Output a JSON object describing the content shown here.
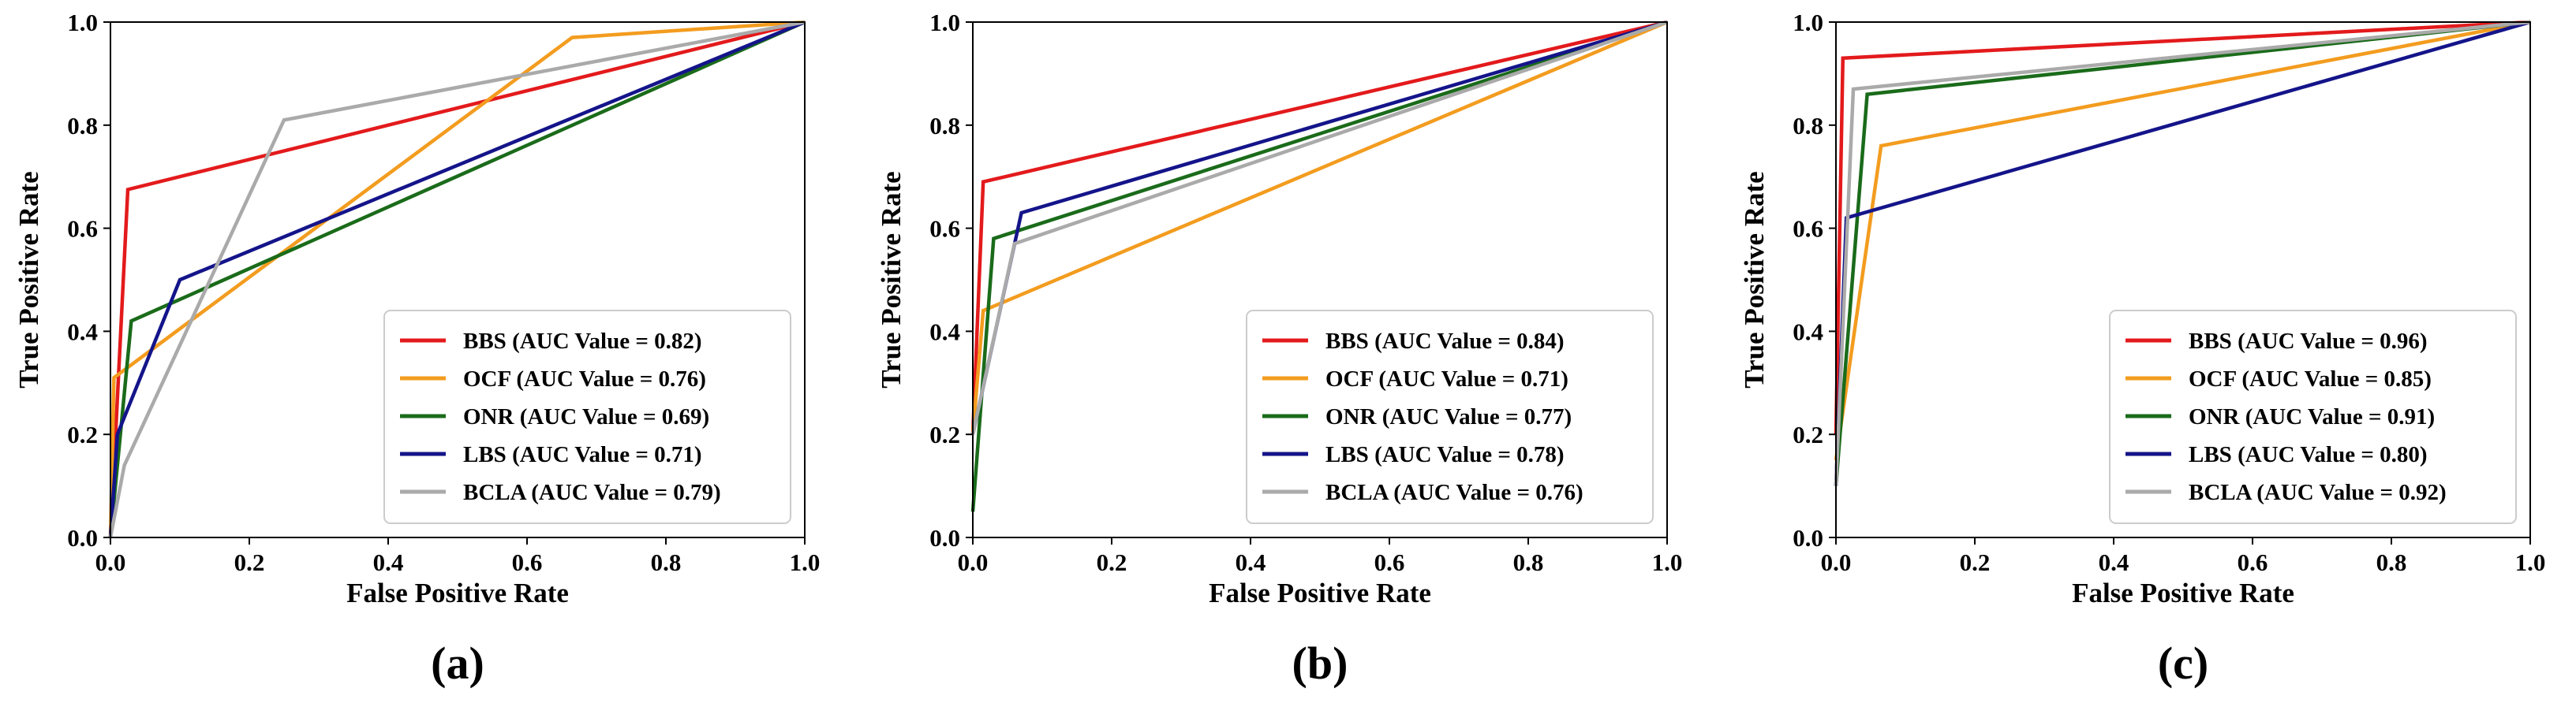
{
  "chart_data": [
    {
      "type": "line",
      "panel_label": "(a)",
      "xlabel": "False Positive Rate",
      "ylabel": "True Positive Rate",
      "xlim": [
        0,
        1
      ],
      "ylim": [
        0,
        1
      ],
      "xticks": [
        "0.0",
        "0.2",
        "0.4",
        "0.6",
        "0.8",
        "1.0"
      ],
      "yticks": [
        "0.0",
        "0.2",
        "0.4",
        "0.6",
        "0.8",
        "1.0"
      ],
      "legend_position": "lower-right",
      "series": [
        {
          "name": "BBS (AUC Value = 0.82)",
          "color": "#e31a1c",
          "points": [
            [
              0,
              0
            ],
            [
              0.025,
              0.675
            ],
            [
              1,
              1
            ]
          ]
        },
        {
          "name": "OCF (AUC Value = 0.76)",
          "color": "#f39c1f",
          "points": [
            [
              0,
              0
            ],
            [
              0.005,
              0.31
            ],
            [
              0.665,
              0.97
            ],
            [
              1,
              1
            ]
          ]
        },
        {
          "name": "ONR (AUC Value = 0.69)",
          "color": "#1a6b1a",
          "points": [
            [
              0,
              0
            ],
            [
              0.03,
              0.42
            ],
            [
              1,
              1
            ]
          ]
        },
        {
          "name": "LBS (AUC Value = 0.71)",
          "color": "#14148a",
          "points": [
            [
              0,
              0
            ],
            [
              0.01,
              0.2
            ],
            [
              0.1,
              0.5
            ],
            [
              1,
              1
            ]
          ]
        },
        {
          "name": "BCLA (AUC Value = 0.79)",
          "color": "#aaaaaa",
          "points": [
            [
              0,
              0
            ],
            [
              0.02,
              0.14
            ],
            [
              0.25,
              0.81
            ],
            [
              1,
              1
            ]
          ]
        }
      ]
    },
    {
      "type": "line",
      "panel_label": "(b)",
      "xlabel": "False Positive Rate",
      "ylabel": "True Positive Rate",
      "xlim": [
        0,
        1
      ],
      "ylim": [
        0,
        1
      ],
      "xticks": [
        "0.0",
        "0.2",
        "0.4",
        "0.6",
        "0.8",
        "1.0"
      ],
      "yticks": [
        "0.0",
        "0.2",
        "0.4",
        "0.6",
        "0.8",
        "1.0"
      ],
      "legend_position": "lower-right",
      "series": [
        {
          "name": "BBS (AUC Value = 0.84)",
          "color": "#e31a1c",
          "points": [
            [
              0,
              0.2
            ],
            [
              0.015,
              0.69
            ],
            [
              1,
              1
            ]
          ]
        },
        {
          "name": "OCF (AUC Value = 0.71)",
          "color": "#f39c1f",
          "points": [
            [
              0,
              0.2
            ],
            [
              0.015,
              0.44
            ],
            [
              1,
              1
            ]
          ]
        },
        {
          "name": "ONR (AUC Value = 0.77)",
          "color": "#1a6b1a",
          "points": [
            [
              0,
              0.05
            ],
            [
              0.03,
              0.58
            ],
            [
              1,
              1
            ]
          ]
        },
        {
          "name": "LBS (AUC Value = 0.78)",
          "color": "#14148a",
          "points": [
            [
              0,
              0.2
            ],
            [
              0.07,
              0.63
            ],
            [
              1,
              1
            ]
          ]
        },
        {
          "name": "BCLA (AUC Value = 0.76)",
          "color": "#aaaaaa",
          "points": [
            [
              0,
              0.2
            ],
            [
              0.06,
              0.57
            ],
            [
              1,
              1
            ]
          ]
        }
      ]
    },
    {
      "type": "line",
      "panel_label": "(c)",
      "xlabel": "False Positive Rate",
      "ylabel": "True Positive Rate",
      "xlim": [
        0,
        1
      ],
      "ylim": [
        0,
        1
      ],
      "xticks": [
        "0.0",
        "0.2",
        "0.4",
        "0.6",
        "0.8",
        "1.0"
      ],
      "yticks": [
        "0.0",
        "0.2",
        "0.4",
        "0.6",
        "0.8",
        "1.0"
      ],
      "legend_position": "lower-right",
      "series": [
        {
          "name": "BBS (AUC Value = 0.96)",
          "color": "#e31a1c",
          "points": [
            [
              0,
              0.2
            ],
            [
              0.01,
              0.93
            ],
            [
              1,
              1
            ]
          ]
        },
        {
          "name": "OCF (AUC Value = 0.85)",
          "color": "#f39c1f",
          "points": [
            [
              0,
              0.15
            ],
            [
              0.065,
              0.76
            ],
            [
              1,
              1
            ]
          ]
        },
        {
          "name": "ONR (AUC Value = 0.91)",
          "color": "#1a6b1a",
          "points": [
            [
              0,
              0.1
            ],
            [
              0.045,
              0.86
            ],
            [
              1,
              1
            ]
          ]
        },
        {
          "name": "LBS (AUC Value = 0.80)",
          "color": "#14148a",
          "points": [
            [
              0,
              0.1
            ],
            [
              0.015,
              0.62
            ],
            [
              1,
              1
            ]
          ]
        },
        {
          "name": "BCLA (AUC Value = 0.92)",
          "color": "#aaaaaa",
          "points": [
            [
              0,
              0.1
            ],
            [
              0.025,
              0.87
            ],
            [
              1,
              1
            ]
          ]
        }
      ]
    }
  ]
}
